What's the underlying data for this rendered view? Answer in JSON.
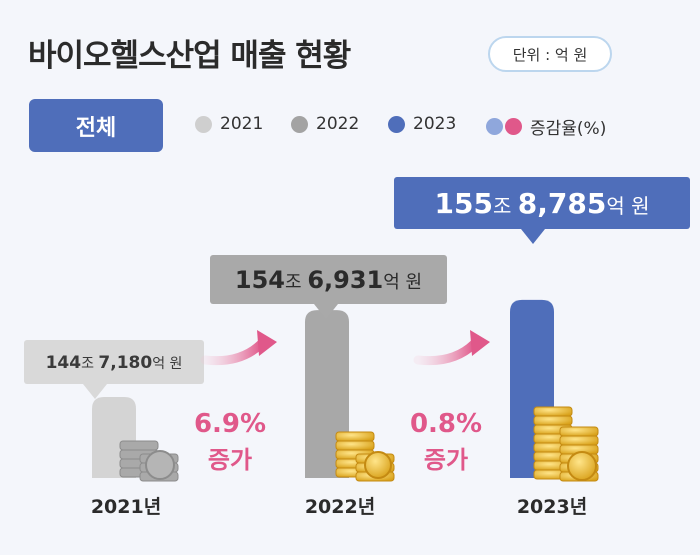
{
  "title": "바이오헬스산업 매출 현황",
  "unit": "단위 : 억 원",
  "tab": "전체",
  "legend": [
    {
      "label": "2021",
      "color": "#cfcfcf"
    },
    {
      "label": "2022",
      "color": "#a3a3a3"
    },
    {
      "label": "2023",
      "color": "#4f6eba"
    },
    {
      "label": "증감율(%)",
      "colors": [
        "#8fa7dc",
        "#e0588a"
      ]
    }
  ],
  "chart_data": {
    "type": "bar",
    "categories": [
      "2021년",
      "2022년",
      "2023년"
    ],
    "values": [
      1447180,
      1546931,
      1558785
    ],
    "value_labels": [
      {
        "big": "144",
        "unit1": "조 ",
        "big2": "7,180",
        "unit2": "억 원"
      },
      {
        "big": "154",
        "unit1": "조 ",
        "big2": "6,931",
        "unit2": "억 원"
      },
      {
        "big": "155",
        "unit1": "조 ",
        "big2": "8,785",
        "unit2": "억 원"
      }
    ],
    "bar_colors": [
      "#d4d4d4",
      "#a8a8a8",
      "#4f6eba"
    ],
    "growth": [
      {
        "pct": "6.9%",
        "text": "증가"
      },
      {
        "pct": "0.8%",
        "text": "증가"
      }
    ],
    "accent_color": "#e0588a"
  }
}
